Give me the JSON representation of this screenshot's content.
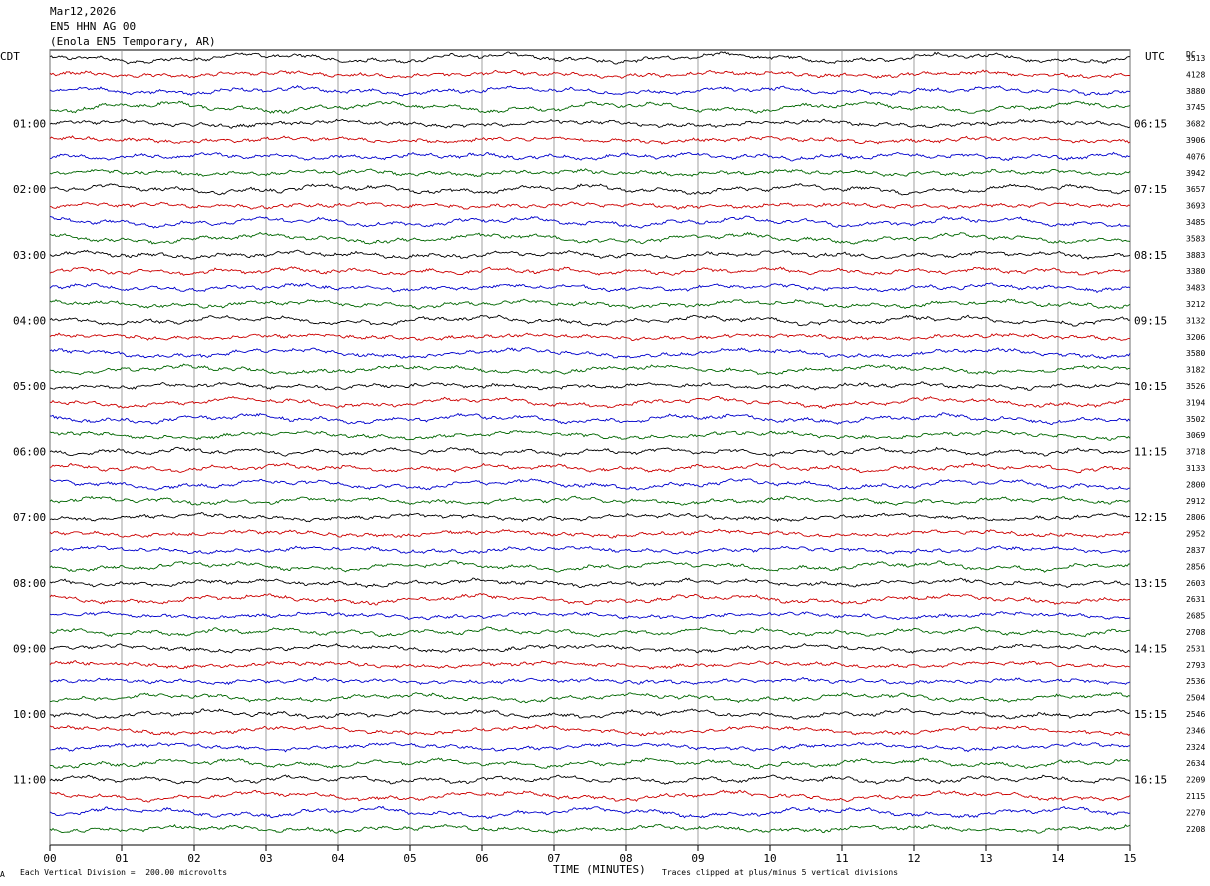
{
  "header": {
    "date": "Mar12,2026",
    "channel": "EN5 HHN AG 00",
    "station": "(Enola EN5 Temporary, AR)"
  },
  "left_zone": "CDT",
  "right_zone": "UTC",
  "dc_label": "DC",
  "footer": {
    "scale_note": "Each Vertical Division =  200.00 microvolts",
    "clip_note": "Traces clipped at plus/minus 5 vertical divisions",
    "corner_mark": "A"
  },
  "chart_data": {
    "type": "line",
    "xlabel": "TIME (MINUTES)",
    "x_ticks": [
      "00",
      "01",
      "02",
      "03",
      "04",
      "05",
      "06",
      "07",
      "08",
      "09",
      "10",
      "11",
      "12",
      "13",
      "14",
      "15"
    ],
    "xlim": [
      0,
      15
    ],
    "trace_colors": [
      "#000000",
      "#cc0000",
      "#0000cc",
      "#006600"
    ],
    "left_time_labels": [
      "01:00",
      "02:00",
      "03:00",
      "04:00",
      "05:00",
      "06:00",
      "07:00",
      "08:00",
      "09:00",
      "10:00",
      "11:00"
    ],
    "right_time_labels": [
      "06:15",
      "07:15",
      "08:15",
      "09:15",
      "10:15",
      "11:15",
      "12:15",
      "13:15",
      "14:15",
      "15:15",
      "16:15"
    ],
    "dc_offsets": [
      "3513",
      "4128",
      "3880",
      "3745",
      "3682",
      "3906",
      "4076",
      "3942",
      "3657",
      "3693",
      "3485",
      "3583",
      "3883",
      "3380",
      "3483",
      "3212",
      "3132",
      "3206",
      "3580",
      "3182",
      "3526",
      "3194",
      "3502",
      "3069",
      "3718",
      "3133",
      "2800",
      "2912",
      "2806",
      "2952",
      "2837",
      "2856",
      "2603",
      "2631",
      "2685",
      "2708",
      "2531",
      "2793",
      "2536",
      "2504",
      "2546",
      "2346",
      "2324",
      "2634",
      "2209",
      "2115",
      "2270",
      "2208"
    ]
  }
}
